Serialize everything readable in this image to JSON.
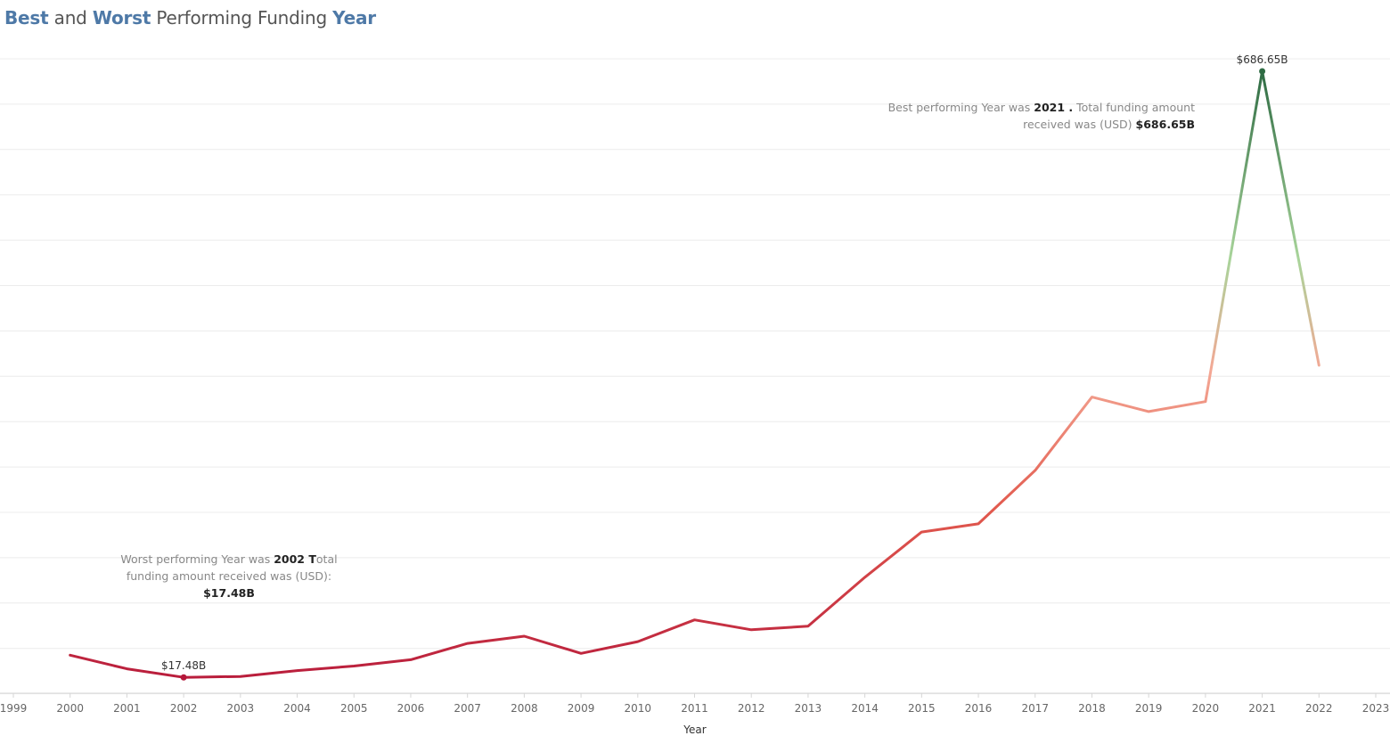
{
  "title": {
    "word1": "Best",
    "word2": " and ",
    "word3": "Worst",
    "word4": " Performing Funding ",
    "word5": "Year"
  },
  "chart_data": {
    "type": "line",
    "title": "Best and Worst Performing Funding Year",
    "xlabel": "Year",
    "ylabel": "",
    "x_ticks": [
      "1999",
      "2000",
      "2001",
      "2002",
      "2003",
      "2004",
      "2005",
      "2006",
      "2007",
      "2008",
      "2009",
      "2010",
      "2011",
      "2012",
      "2013",
      "2014",
      "2015",
      "2016",
      "2017",
      "2018",
      "2019",
      "2020",
      "2021",
      "2022",
      "2023"
    ],
    "xlim": [
      1999,
      2023
    ],
    "ylim": [
      0,
      700
    ],
    "y_unit": "$B",
    "grid": true,
    "x": [
      2000,
      2001,
      2002,
      2003,
      2004,
      2005,
      2006,
      2007,
      2008,
      2009,
      2010,
      2011,
      2012,
      2013,
      2014,
      2015,
      2016,
      2017,
      2018,
      2019,
      2020,
      2021,
      2022
    ],
    "values": [
      42,
      27,
      17.48,
      18.5,
      25,
      30,
      37,
      55,
      63,
      44,
      57,
      81,
      70,
      74,
      128,
      178,
      187,
      246,
      327,
      311,
      322,
      686.65,
      362
    ],
    "point_labels": [
      {
        "year": 2002,
        "text": "$17.48B"
      },
      {
        "year": 2021,
        "text": "$686.65B"
      }
    ],
    "annotations": {
      "best": {
        "line1_pre": "Best performing Year was ",
        "line1_year": "2021 .",
        "line1_post": " Total  funding amount",
        "line2_pre": "received was (USD) ",
        "line2_value": "$686.65B"
      },
      "worst": {
        "line1_pre": "Worst performing Year was ",
        "line1_year": "2002 ",
        "line1_t": "T",
        "line1_post": "otal",
        "line2": "funding amount received was (USD):",
        "line3": "$17.48B"
      }
    },
    "colors": {
      "low": "#b5173a",
      "mid": "#e25a4e",
      "light": "#f4a895",
      "high": "#2e6b43",
      "end": "#a8d49a",
      "grid": "#ececec",
      "axis": "#d6d6d6"
    }
  }
}
